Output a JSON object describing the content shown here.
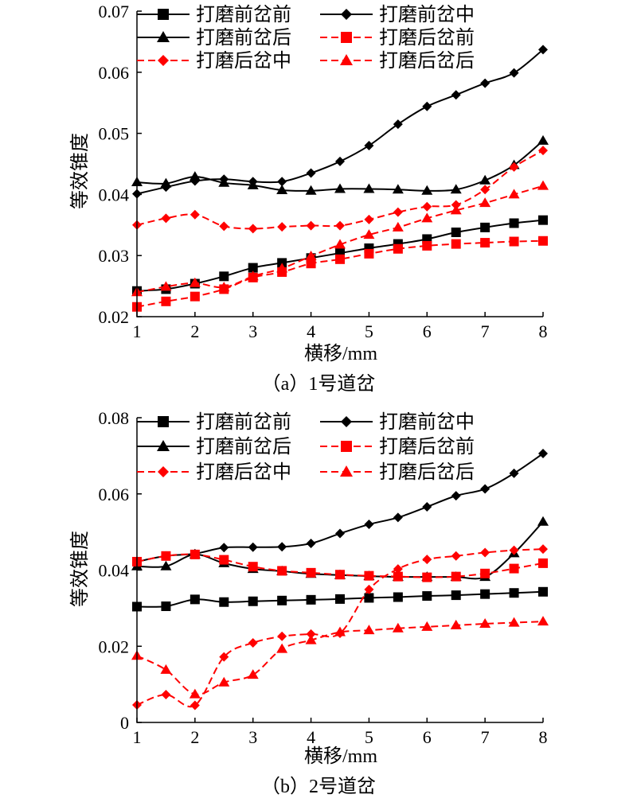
{
  "colors": {
    "black": "#000000",
    "red": "#ff0000"
  },
  "chart_data": [
    {
      "type": "line",
      "caption": "（a）1号道岔",
      "xlabel": "横移/mm",
      "ylabel": "等效锥度",
      "xlim": [
        1,
        8
      ],
      "ylim": [
        0.02,
        0.07
      ],
      "x_ticks": [
        1,
        2,
        3,
        4,
        5,
        6,
        7,
        8
      ],
      "y_ticks": [
        0.02,
        0.03,
        0.04,
        0.05,
        0.06,
        0.07
      ],
      "y_tick_labels": [
        "0.02",
        "0.03",
        "0.04",
        "0.05",
        "0.06",
        "0.07"
      ],
      "grid": false,
      "legend_placement": "top",
      "x": [
        1,
        1.5,
        2,
        2.5,
        3,
        3.5,
        4,
        4.5,
        5,
        5.5,
        6,
        6.5,
        7,
        7.5,
        8
      ],
      "series": [
        {
          "name": "打磨前岔前",
          "color": "#000000",
          "dash": "solid",
          "marker": "square",
          "values": [
            0.0242,
            0.0245,
            0.0254,
            0.0266,
            0.028,
            0.0288,
            0.0296,
            0.0304,
            0.0312,
            0.0319,
            0.0327,
            0.0338,
            0.0346,
            0.0353,
            0.0358
          ]
        },
        {
          "name": "打磨前岔中",
          "color": "#000000",
          "dash": "solid",
          "marker": "diamond",
          "values": [
            0.0401,
            0.0412,
            0.0422,
            0.0425,
            0.0421,
            0.0421,
            0.0435,
            0.0454,
            0.048,
            0.0515,
            0.0544,
            0.0563,
            0.0582,
            0.0599,
            0.0637
          ]
        },
        {
          "name": "打磨前岔后",
          "color": "#000000",
          "dash": "solid",
          "marker": "triangle",
          "values": [
            0.042,
            0.0418,
            0.0429,
            0.0419,
            0.0415,
            0.0407,
            0.0406,
            0.0409,
            0.0409,
            0.0408,
            0.0406,
            0.0408,
            0.0423,
            0.0448,
            0.0488
          ]
        },
        {
          "name": "打磨后岔前",
          "color": "#ff0000",
          "dash": "dashed",
          "marker": "square",
          "values": [
            0.0216,
            0.0225,
            0.0233,
            0.0245,
            0.0264,
            0.0273,
            0.0287,
            0.0294,
            0.0303,
            0.0311,
            0.0316,
            0.0319,
            0.0321,
            0.0323,
            0.0324
          ]
        },
        {
          "name": "打磨后岔中",
          "color": "#ff0000",
          "dash": "dashed",
          "marker": "diamond",
          "values": [
            0.035,
            0.0361,
            0.0367,
            0.0348,
            0.0344,
            0.0347,
            0.0349,
            0.0349,
            0.0359,
            0.0371,
            0.038,
            0.0383,
            0.0408,
            0.0445,
            0.0472
          ]
        },
        {
          "name": "打磨后岔后",
          "color": "#ff0000",
          "dash": "dashed",
          "marker": "triangle",
          "values": [
            0.024,
            0.0249,
            0.0255,
            0.0248,
            0.0266,
            0.0279,
            0.0299,
            0.0318,
            0.0334,
            0.0346,
            0.0361,
            0.0374,
            0.0386,
            0.04,
            0.0414
          ]
        }
      ]
    },
    {
      "type": "line",
      "caption": "（b）2号道岔",
      "xlabel": "横移/mm",
      "ylabel": "等效锥度",
      "xlim": [
        1,
        8
      ],
      "ylim": [
        0,
        0.08
      ],
      "x_ticks": [
        1,
        2,
        3,
        4,
        5,
        6,
        7,
        8
      ],
      "y_ticks": [
        0,
        0.02,
        0.04,
        0.06,
        0.08
      ],
      "y_tick_labels": [
        "0",
        "0.02",
        "0.04",
        "0.06",
        "0.08"
      ],
      "grid": false,
      "legend_placement": "top",
      "x": [
        1,
        1.5,
        2,
        2.5,
        3,
        3.5,
        4,
        4.5,
        5,
        5.5,
        6,
        6.5,
        7,
        7.5,
        8
      ],
      "series": [
        {
          "name": "打磨前岔前",
          "color": "#000000",
          "dash": "solid",
          "marker": "square",
          "values": [
            0.0304,
            0.0305,
            0.0323,
            0.0316,
            0.0318,
            0.032,
            0.0322,
            0.0324,
            0.0327,
            0.0329,
            0.0332,
            0.0334,
            0.0337,
            0.034,
            0.0343
          ]
        },
        {
          "name": "打磨前岔中",
          "color": "#000000",
          "dash": "solid",
          "marker": "diamond",
          "values": [
            0.0422,
            0.0437,
            0.0443,
            0.0459,
            0.046,
            0.0461,
            0.047,
            0.0496,
            0.052,
            0.0538,
            0.0566,
            0.0595,
            0.0613,
            0.0654,
            0.0706
          ]
        },
        {
          "name": "打磨前岔后",
          "color": "#000000",
          "dash": "solid",
          "marker": "triangle",
          "values": [
            0.041,
            0.041,
            0.0441,
            0.0418,
            0.0403,
            0.0397,
            0.039,
            0.0387,
            0.0384,
            0.0382,
            0.0382,
            0.0382,
            0.0382,
            0.0444,
            0.0527
          ]
        },
        {
          "name": "打磨后岔前",
          "color": "#ff0000",
          "dash": "dashed",
          "marker": "square",
          "values": [
            0.0422,
            0.0437,
            0.0441,
            0.0427,
            0.0409,
            0.0398,
            0.0393,
            0.0388,
            0.0385,
            0.0383,
            0.0381,
            0.0383,
            0.0391,
            0.0404,
            0.0418
          ]
        },
        {
          "name": "打磨后岔中",
          "color": "#ff0000",
          "dash": "dashed",
          "marker": "diamond",
          "values": [
            0.0046,
            0.0073,
            0.0045,
            0.0172,
            0.0209,
            0.0226,
            0.0232,
            0.0234,
            0.0349,
            0.0403,
            0.0428,
            0.0437,
            0.0446,
            0.0452,
            0.0455
          ]
        },
        {
          "name": "打磨后岔后",
          "color": "#ff0000",
          "dash": "dashed",
          "marker": "triangle",
          "values": [
            0.0175,
            0.0138,
            0.0074,
            0.0105,
            0.0125,
            0.0193,
            0.0216,
            0.0237,
            0.0242,
            0.0247,
            0.0251,
            0.0255,
            0.0259,
            0.0262,
            0.0265
          ]
        }
      ]
    }
  ]
}
